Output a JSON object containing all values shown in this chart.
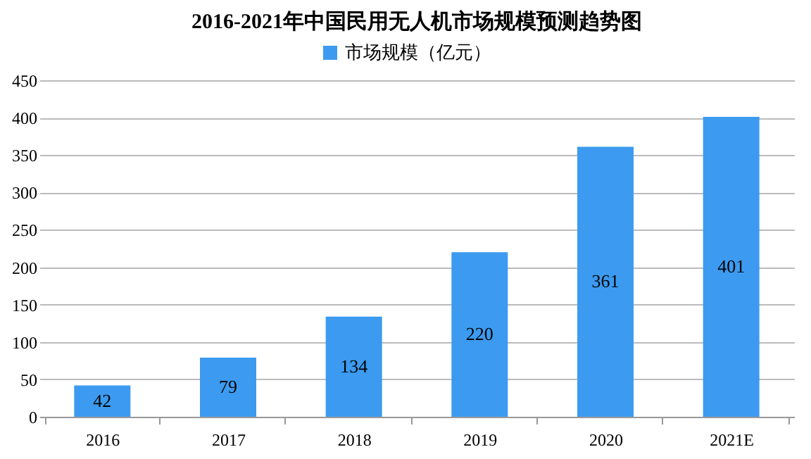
{
  "chart_data": {
    "type": "bar",
    "title": "2016-2021年中国民用无人机市场规模预测趋势图",
    "categories": [
      "2016",
      "2017",
      "2018",
      "2019",
      "2020",
      "2021E"
    ],
    "series": [
      {
        "name": "市场规模（亿元）",
        "color": "#3c9bf0",
        "values": [
          42,
          79,
          134,
          220,
          361,
          401
        ]
      }
    ],
    "ylim": [
      0,
      450
    ],
    "yticks": [
      0,
      50,
      100,
      150,
      200,
      250,
      300,
      350,
      400,
      450
    ],
    "grid": "y",
    "legend": "top",
    "data_labels": true
  }
}
